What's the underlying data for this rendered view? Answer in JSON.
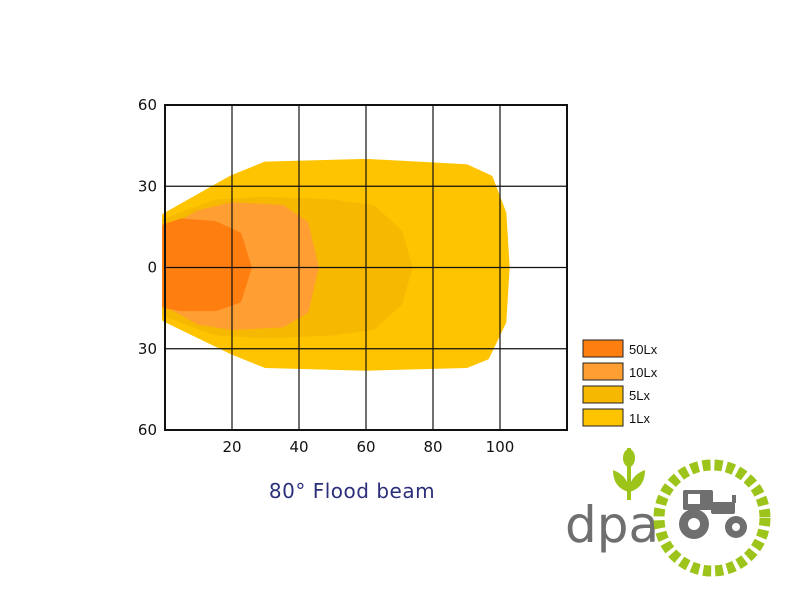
{
  "chart_data": {
    "type": "area",
    "title": "80° Flood beam",
    "x_ticks": [
      "20",
      "40",
      "60",
      "80",
      "100"
    ],
    "y_tick_labels": [
      "60",
      "30",
      "0",
      "30",
      "60"
    ],
    "xlim": [
      0,
      120
    ],
    "ylim": [
      -60,
      60
    ],
    "grid": true,
    "legend_placement": "bottom-right",
    "series": [
      {
        "name": "1Lx",
        "color": "#ffc400",
        "points": [
          [
            0,
            19
          ],
          [
            20,
            33
          ],
          [
            30,
            38
          ],
          [
            60,
            39
          ],
          [
            90,
            37
          ],
          [
            97,
            33
          ],
          [
            101,
            20
          ],
          [
            102,
            0
          ],
          [
            101,
            -20
          ],
          [
            96,
            -33
          ],
          [
            90,
            -36
          ],
          [
            60,
            -37
          ],
          [
            30,
            -36
          ],
          [
            20,
            -31
          ],
          [
            0,
            -19
          ]
        ]
      },
      {
        "name": "5Lx",
        "color": "#f6b800",
        "points": [
          [
            0,
            17
          ],
          [
            15,
            24
          ],
          [
            30,
            25
          ],
          [
            50,
            24
          ],
          [
            62,
            22
          ],
          [
            70,
            13
          ],
          [
            73,
            0
          ],
          [
            70,
            -13
          ],
          [
            62,
            -22
          ],
          [
            50,
            -24
          ],
          [
            30,
            -25
          ],
          [
            15,
            -24
          ],
          [
            0,
            -17
          ]
        ]
      },
      {
        "name": "10Lx",
        "color": "#ff9e33",
        "points": [
          [
            0,
            13
          ],
          [
            10,
            20
          ],
          [
            20,
            23
          ],
          [
            35,
            22
          ],
          [
            42,
            16
          ],
          [
            45,
            0
          ],
          [
            42,
            -16
          ],
          [
            35,
            -21
          ],
          [
            20,
            -22
          ],
          [
            10,
            -20
          ],
          [
            0,
            -13
          ]
        ]
      },
      {
        "name": "50Lx",
        "color": "#ff7e10",
        "points": [
          [
            0,
            15
          ],
          [
            5,
            17
          ],
          [
            15,
            16
          ],
          [
            22,
            12
          ],
          [
            25,
            0
          ],
          [
            22,
            -12
          ],
          [
            15,
            -15
          ],
          [
            5,
            -15
          ],
          [
            0,
            -14
          ]
        ]
      }
    ]
  },
  "legend": [
    {
      "label": "50Lx",
      "color": "#ff7e10"
    },
    {
      "label": "10Lx",
      "color": "#ff9e33"
    },
    {
      "label": "5Lx",
      "color": "#f6b800"
    },
    {
      "label": "1Lx",
      "color": "#ffc400"
    }
  ],
  "logo": {
    "text": "dpa",
    "brand_color": "#9dc41a"
  }
}
